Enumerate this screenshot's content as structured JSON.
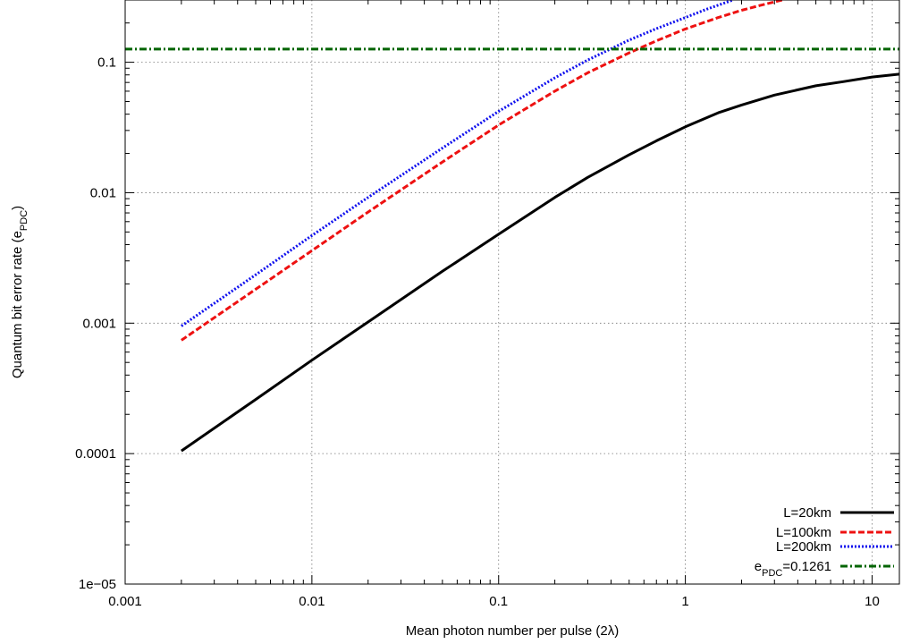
{
  "chart_data": {
    "type": "line",
    "xlabel": "Mean photon number per pulse (2λ)",
    "ylabel": "Quantum bit error rate (e_PDC)",
    "ylabel_main": "Quantum bit error rate (e",
    "ylabel_sub": "PDC",
    "ylabel_close": ")",
    "xscale": "log",
    "yscale": "log",
    "xlim": [
      0.001,
      14
    ],
    "ylim": [
      1e-05,
      0.3
    ],
    "grid": true,
    "legend_position": "bottom-right",
    "xticks": [
      {
        "value": 0.001,
        "label": "0.001"
      },
      {
        "value": 0.01,
        "label": "0.01"
      },
      {
        "value": 0.1,
        "label": "0.1"
      },
      {
        "value": 1,
        "label": "1"
      },
      {
        "value": 10,
        "label": "10"
      }
    ],
    "yticks": [
      {
        "value": 1e-05,
        "label": "1e−05"
      },
      {
        "value": 0.0001,
        "label": "0.0001"
      },
      {
        "value": 0.001,
        "label": "0.001"
      },
      {
        "value": 0.01,
        "label": "0.01"
      },
      {
        "value": 0.1,
        "label": "0.1"
      }
    ],
    "series": [
      {
        "name": "L=20km",
        "color": "#000000",
        "style": "solid",
        "x": [
          0.002,
          0.005,
          0.01,
          0.02,
          0.05,
          0.1,
          0.2,
          0.3,
          0.5,
          0.7,
          1,
          1.5,
          2,
          3,
          5,
          7,
          10,
          14
        ],
        "y": [
          0.000105,
          0.00026,
          0.00052,
          0.00102,
          0.0025,
          0.0048,
          0.0092,
          0.0131,
          0.0195,
          0.025,
          0.032,
          0.041,
          0.047,
          0.056,
          0.066,
          0.071,
          0.077,
          0.081
        ]
      },
      {
        "name": "L=100km",
        "color": "#ee1111",
        "style": "dashed",
        "x": [
          0.002,
          0.005,
          0.01,
          0.02,
          0.05,
          0.1,
          0.2,
          0.3,
          0.5,
          0.7,
          1,
          1.5,
          2,
          2.5,
          3.3
        ],
        "y": [
          0.00074,
          0.00182,
          0.0036,
          0.0071,
          0.0172,
          0.033,
          0.06,
          0.083,
          0.118,
          0.146,
          0.18,
          0.22,
          0.25,
          0.272,
          0.3
        ]
      },
      {
        "name": "L=200km",
        "color": "#1111ee",
        "style": "dotted",
        "x": [
          0.002,
          0.005,
          0.01,
          0.02,
          0.05,
          0.1,
          0.2,
          0.3,
          0.5,
          0.7,
          1,
          1.3,
          1.8
        ],
        "y": [
          0.00095,
          0.00235,
          0.0047,
          0.0092,
          0.022,
          0.042,
          0.076,
          0.104,
          0.148,
          0.181,
          0.22,
          0.255,
          0.3
        ]
      },
      {
        "name": "e_PDC=0.1261",
        "name_main": "e",
        "name_sub": "PDC",
        "name_rest": "=0.1261",
        "color": "#006400",
        "style": "dashdot",
        "x": [
          0.001,
          14
        ],
        "y": [
          0.1261,
          0.1261
        ]
      }
    ]
  }
}
